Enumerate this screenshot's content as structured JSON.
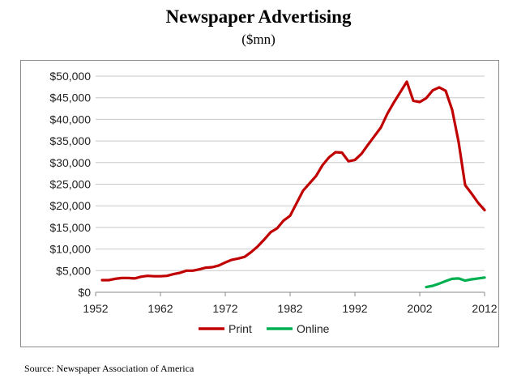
{
  "chart_data": {
    "type": "line",
    "title": "Newspaper Advertising",
    "subtitle": "($mn)",
    "xlim": [
      1952,
      2012
    ],
    "ylim": [
      0,
      50000
    ],
    "x_ticks": [
      1952,
      1962,
      1972,
      1982,
      1992,
      2002,
      2012
    ],
    "y_ticks": [
      0,
      5000,
      10000,
      15000,
      20000,
      25000,
      30000,
      35000,
      40000,
      45000,
      50000
    ],
    "y_tick_labels": [
      "$0",
      "$5,000",
      "$10,000",
      "$15,000",
      "$20,000",
      "$25,000",
      "$30,000",
      "$35,000",
      "$40,000",
      "$45,000",
      "$50,000"
    ],
    "x_tick_labels": [
      "1952",
      "1962",
      "1972",
      "1982",
      "1992",
      "2002",
      "2012"
    ],
    "grid": "horizontal",
    "legend_position": "bottom",
    "series": [
      {
        "name": "Print",
        "color": "#c00000",
        "x": [
          1953,
          1954,
          1955,
          1956,
          1957,
          1958,
          1959,
          1960,
          1961,
          1962,
          1963,
          1964,
          1965,
          1966,
          1967,
          1968,
          1969,
          1970,
          1971,
          1972,
          1973,
          1974,
          1975,
          1976,
          1977,
          1978,
          1979,
          1980,
          1981,
          1982,
          1983,
          1984,
          1985,
          1986,
          1987,
          1988,
          1989,
          1990,
          1991,
          1992,
          1993,
          1994,
          1995,
          1996,
          1997,
          1998,
          1999,
          2000,
          2001,
          2002,
          2003,
          2004,
          2005,
          2006,
          2007,
          2008,
          2009,
          2010,
          2011,
          2012
        ],
        "y": [
          2800,
          2800,
          3100,
          3300,
          3300,
          3200,
          3600,
          3800,
          3700,
          3700,
          3800,
          4200,
          4500,
          5000,
          5000,
          5300,
          5700,
          5800,
          6200,
          6900,
          7500,
          7800,
          8200,
          9300,
          10600,
          12200,
          13900,
          14800,
          16600,
          17700,
          20600,
          23500,
          25200,
          26900,
          29400,
          31200,
          32400,
          32300,
          30300,
          30600,
          32000,
          34100,
          36100,
          38100,
          41300,
          43900,
          46300,
          48700,
          44300,
          44000,
          44900,
          46700,
          47400,
          46600,
          42200,
          34700,
          24800,
          22800,
          20700,
          19000
        ]
      },
      {
        "name": "Online",
        "color": "#00b050",
        "x": [
          2003,
          2004,
          2005,
          2006,
          2007,
          2008,
          2009,
          2010,
          2011,
          2012
        ],
        "y": [
          1200,
          1500,
          2000,
          2600,
          3100,
          3200,
          2700,
          3000,
          3200,
          3400
        ]
      }
    ]
  },
  "source_note": "Source: Newspaper Association of America"
}
